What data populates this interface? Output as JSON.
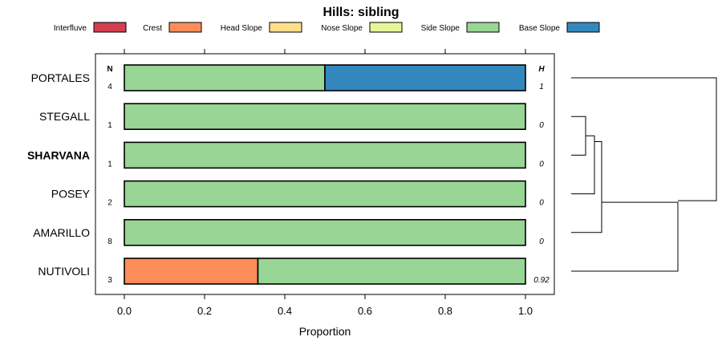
{
  "chart_data": {
    "type": "bar",
    "orientation": "horizontal",
    "stacked": true,
    "title": "Hills: sibling",
    "xlabel": "Proportion",
    "ylabel": "",
    "xlim": [
      -0.07,
      1.07
    ],
    "xticks": [
      0.0,
      0.2,
      0.4,
      0.6,
      0.8,
      1.0
    ],
    "xtick_labels": [
      "0.0",
      "0.2",
      "0.4",
      "0.6",
      "0.8",
      "1.0"
    ],
    "legend_position": "top",
    "legend": [
      {
        "name": "Interfluve",
        "color": "#D53E4F"
      },
      {
        "name": "Crest",
        "color": "#FC8D59"
      },
      {
        "name": "Head Slope",
        "color": "#FEE08B"
      },
      {
        "name": "Nose Slope",
        "color": "#E6F598"
      },
      {
        "name": "Side Slope",
        "color": "#99D594"
      },
      {
        "name": "Base Slope",
        "color": "#3288BD"
      }
    ],
    "n_header": "N",
    "h_header": "H",
    "categories": [
      "PORTALES",
      "STEGALL",
      "SHARVANA",
      "POSEY",
      "AMARILLO",
      "NUTIVOLI"
    ],
    "highlighted_category": "SHARVANA",
    "n_values": [
      "4",
      "1",
      "1",
      "2",
      "8",
      "3"
    ],
    "h_values": [
      "1",
      "0",
      "0",
      "0",
      "0",
      "0.92"
    ],
    "series": [
      {
        "name": "Interfluve",
        "values": [
          0,
          0,
          0,
          0,
          0,
          0
        ]
      },
      {
        "name": "Crest",
        "values": [
          0,
          0,
          0,
          0,
          0,
          0.333
        ]
      },
      {
        "name": "Head Slope",
        "values": [
          0,
          0,
          0,
          0,
          0,
          0
        ]
      },
      {
        "name": "Nose Slope",
        "values": [
          0,
          0,
          0,
          0,
          0,
          0
        ]
      },
      {
        "name": "Side Slope",
        "values": [
          0.5,
          1,
          1,
          1,
          1,
          0.667
        ]
      },
      {
        "name": "Base Slope",
        "values": [
          0.5,
          0,
          0,
          0,
          0,
          0
        ]
      }
    ]
  }
}
